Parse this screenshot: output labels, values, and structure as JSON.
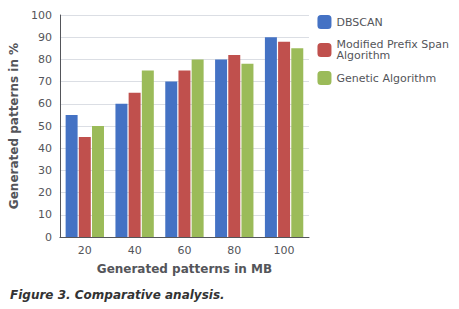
{
  "chart_data": {
    "type": "bar",
    "categories": [
      "20",
      "40",
      "60",
      "80",
      "100"
    ],
    "series": [
      {
        "name": "DBSCAN",
        "color": "#4472C4",
        "values": [
          55,
          60,
          70,
          80,
          90
        ]
      },
      {
        "name": "Modified Prefix Span\nAlgorithm",
        "color": "#C0504D",
        "values": [
          45,
          65,
          75,
          82,
          88
        ]
      },
      {
        "name": "Genetic Algorithm",
        "color": "#9BBB59",
        "values": [
          50,
          75,
          80,
          78,
          85
        ]
      }
    ],
    "xlabel": "Generated patterns in MB",
    "ylabel": "Generated patterns in %",
    "caption": "Figure 3. Comparative analysis.",
    "ylim": [
      0,
      100
    ],
    "yticks": [
      0,
      10,
      20,
      30,
      40,
      50,
      60,
      70,
      80,
      90,
      100
    ],
    "grid": true,
    "legend": "upper right"
  }
}
